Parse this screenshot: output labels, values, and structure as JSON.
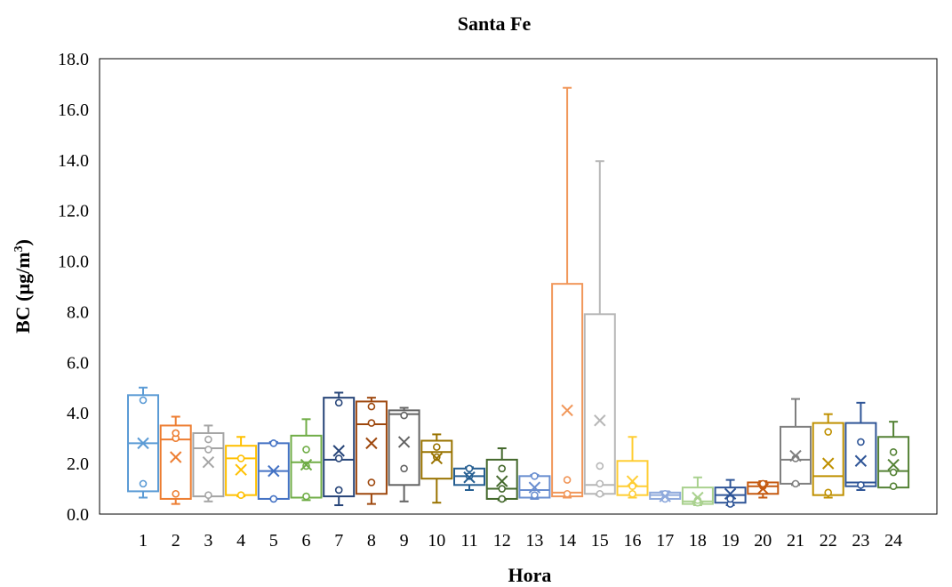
{
  "chart_data": {
    "type": "box",
    "title": "Santa Fe",
    "xlabel": "Hora",
    "ylabel_main": "BC (µg/m",
    "ylabel_sup": "3",
    "ylabel_close": ")",
    "ylim": [
      0,
      18
    ],
    "yticks": [
      "0.0",
      "2.0",
      "4.0",
      "6.0",
      "8.0",
      "10.0",
      "12.0",
      "14.0",
      "16.0",
      "18.0"
    ],
    "categories": [
      "1",
      "2",
      "3",
      "4",
      "5",
      "6",
      "7",
      "8",
      "9",
      "10",
      "11",
      "12",
      "13",
      "14",
      "15",
      "16",
      "17",
      "18",
      "19",
      "20",
      "21",
      "22",
      "23",
      "24"
    ],
    "colors": [
      "#5b9bd5",
      "#ed7d31",
      "#a5a5a5",
      "#ffc000",
      "#4472c4",
      "#70ad47",
      "#264478",
      "#9e480e",
      "#636363",
      "#997300",
      "#255e91",
      "#43682b",
      "#698ed0",
      "#f1975a",
      "#b7b7b7",
      "#ffcd33",
      "#8faadc",
      "#a9d18e",
      "#2f5597",
      "#c55a11",
      "#7f7f7f",
      "#bf9000",
      "#2f5597",
      "#548235"
    ],
    "series": [
      {
        "min": 0.65,
        "q1": 0.9,
        "median": 2.8,
        "q3": 4.7,
        "max": 5.0,
        "mean": 2.8,
        "points": [
          1.2,
          4.5
        ]
      },
      {
        "min": 0.4,
        "q1": 0.6,
        "median": 2.95,
        "q3": 3.5,
        "max": 3.85,
        "mean": 2.25,
        "points": [
          0.8,
          3.0,
          3.2
        ]
      },
      {
        "min": 0.5,
        "q1": 0.7,
        "median": 2.6,
        "q3": 3.2,
        "max": 3.5,
        "mean": 2.05,
        "points": [
          0.75,
          2.55,
          2.95
        ]
      },
      {
        "min": 0.7,
        "q1": 0.75,
        "median": 2.2,
        "q3": 2.7,
        "max": 3.05,
        "mean": 1.75,
        "points": [
          0.75,
          2.2
        ]
      },
      {
        "min": 0.6,
        "q1": 0.6,
        "median": 1.7,
        "q3": 2.8,
        "max": 2.85,
        "mean": 1.7,
        "points": [
          0.6,
          2.8
        ]
      },
      {
        "min": 0.55,
        "q1": 0.65,
        "median": 2.05,
        "q3": 3.1,
        "max": 3.75,
        "mean": 1.95,
        "points": [
          0.7,
          1.9,
          2.55
        ]
      },
      {
        "min": 0.35,
        "q1": 0.7,
        "median": 2.15,
        "q3": 4.6,
        "max": 4.8,
        "mean": 2.5,
        "points": [
          0.95,
          2.2,
          4.4
        ]
      },
      {
        "min": 0.4,
        "q1": 0.8,
        "median": 3.55,
        "q3": 4.45,
        "max": 4.6,
        "mean": 2.8,
        "points": [
          1.25,
          3.6,
          4.25
        ]
      },
      {
        "min": 0.5,
        "q1": 1.15,
        "median": 3.95,
        "q3": 4.1,
        "max": 4.2,
        "mean": 2.85,
        "points": [
          1.8,
          3.9
        ]
      },
      {
        "min": 0.45,
        "q1": 1.4,
        "median": 2.45,
        "q3": 2.9,
        "max": 3.15,
        "mean": 2.2,
        "points": [
          2.25,
          2.65
        ]
      },
      {
        "min": 0.95,
        "q1": 1.15,
        "median": 1.5,
        "q3": 1.8,
        "max": 1.85,
        "mean": 1.45,
        "points": [
          1.5,
          1.8
        ]
      },
      {
        "min": 0.55,
        "q1": 0.6,
        "median": 1.0,
        "q3": 2.15,
        "max": 2.6,
        "mean": 1.3,
        "points": [
          0.6,
          1.0,
          1.8
        ]
      },
      {
        "min": 0.6,
        "q1": 0.65,
        "median": 0.95,
        "q3": 1.5,
        "max": 1.55,
        "mean": 1.05,
        "points": [
          0.75,
          1.5
        ]
      },
      {
        "min": 0.65,
        "q1": 0.7,
        "median": 0.85,
        "q3": 9.1,
        "max": 16.85,
        "mean": 4.1,
        "points": [
          0.8,
          1.35
        ]
      },
      {
        "min": 0.75,
        "q1": 0.8,
        "median": 1.15,
        "q3": 7.9,
        "max": 13.95,
        "mean": 3.7,
        "points": [
          0.8,
          1.2,
          1.9
        ]
      },
      {
        "min": 0.65,
        "q1": 0.75,
        "median": 1.1,
        "q3": 2.1,
        "max": 3.05,
        "mean": 1.3,
        "points": [
          0.8,
          1.1
        ]
      },
      {
        "min": 0.55,
        "q1": 0.6,
        "median": 0.75,
        "q3": 0.85,
        "max": 0.9,
        "mean": 0.7,
        "points": [
          0.6,
          0.8
        ]
      },
      {
        "min": 0.35,
        "q1": 0.4,
        "median": 0.5,
        "q3": 1.05,
        "max": 1.45,
        "mean": 0.65,
        "points": [
          0.45,
          0.55
        ]
      },
      {
        "min": 0.35,
        "q1": 0.45,
        "median": 0.75,
        "q3": 1.05,
        "max": 1.35,
        "mean": 0.8,
        "points": [
          0.4,
          0.6
        ]
      },
      {
        "min": 0.65,
        "q1": 0.8,
        "median": 1.1,
        "q3": 1.25,
        "max": 1.3,
        "mean": 1.0,
        "points": [
          1.1,
          1.2
        ]
      },
      {
        "min": 1.15,
        "q1": 1.2,
        "median": 2.15,
        "q3": 3.45,
        "max": 4.55,
        "mean": 2.3,
        "points": [
          1.2,
          2.2
        ]
      },
      {
        "min": 0.65,
        "q1": 0.75,
        "median": 1.5,
        "q3": 3.6,
        "max": 3.95,
        "mean": 2.0,
        "points": [
          0.85,
          3.25
        ]
      },
      {
        "min": 0.95,
        "q1": 1.1,
        "median": 1.25,
        "q3": 3.6,
        "max": 4.4,
        "mean": 2.1,
        "points": [
          1.15,
          2.85
        ]
      },
      {
        "min": 1.05,
        "q1": 1.05,
        "median": 1.7,
        "q3": 3.05,
        "max": 3.65,
        "mean": 1.95,
        "points": [
          1.1,
          1.65,
          2.45
        ]
      }
    ]
  }
}
